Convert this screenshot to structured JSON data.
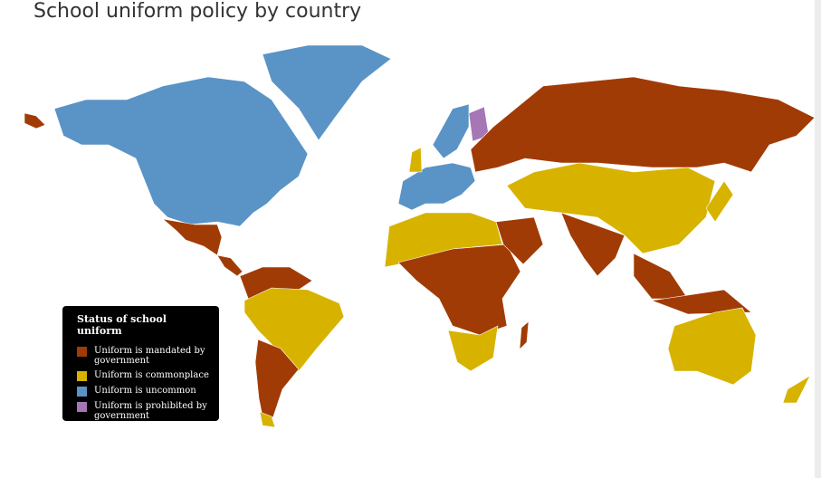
{
  "title": "School uniform policy by country",
  "legend": {
    "title": "Status of school uniform",
    "items": [
      {
        "label": "Uniform is mandated by government",
        "color": "#a13b05"
      },
      {
        "label": "Uniform is commonplace",
        "color": "#d7b300"
      },
      {
        "label": "Uniform is uncommon",
        "color": "#5a93c6"
      },
      {
        "label": "Uniform is prohibited by government",
        "color": "#a676b6"
      }
    ]
  }
}
